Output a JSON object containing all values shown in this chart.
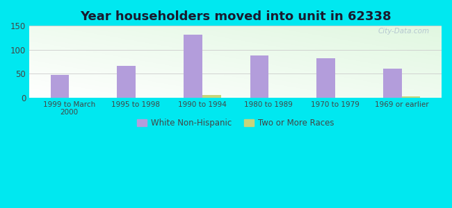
{
  "title": "Year householders moved into unit in 62338",
  "categories": [
    "1999 to March\n2000",
    "1995 to 1998",
    "1990 to 1994",
    "1980 to 1989",
    "1970 to 1979",
    "1969 or earlier"
  ],
  "white_non_hispanic": [
    48,
    67,
    131,
    88,
    82,
    60
  ],
  "two_or_more_races": [
    0,
    0,
    5,
    0,
    0,
    2
  ],
  "bar_color_white": "#b39ddb",
  "bar_color_two": "#c8d47a",
  "ylim": [
    0,
    150
  ],
  "yticks": [
    0,
    50,
    100,
    150
  ],
  "background_outer": "#00e8f0",
  "watermark": "City-Data.com",
  "legend_white": "White Non-Hispanic",
  "legend_two": "Two or More Races",
  "title_fontsize": 13,
  "tick_color": "#444444"
}
